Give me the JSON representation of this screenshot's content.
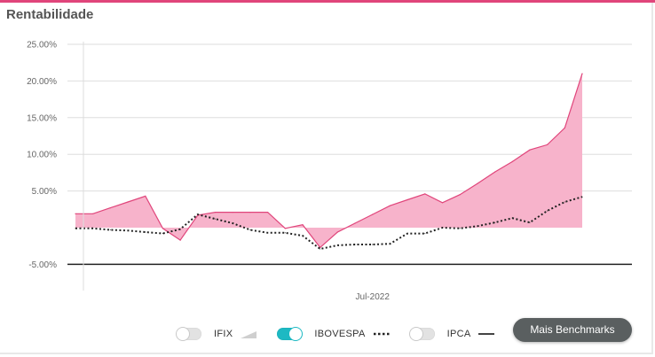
{
  "card": {
    "title": "Rentabilidade"
  },
  "colors": {
    "accent": "#e0457b",
    "fund_fill": "#f7b3cb",
    "fund_line": "#e0457b",
    "ibovespa": "#222222",
    "toggle_on": "#1db9c3",
    "button_bg": "#5a5f60"
  },
  "chart_data": {
    "type": "area",
    "title": "Rentabilidade",
    "xlabel": "",
    "ylabel": "",
    "ylim": [
      -5,
      25
    ],
    "yticks": [
      25,
      20,
      15,
      10,
      5,
      0,
      -5
    ],
    "ytick_labels": [
      "25.00%",
      "20.00%",
      "15.00%",
      "10.00%",
      "5.00%",
      "",
      "-5.00%"
    ],
    "xtick_labels": [
      {
        "label": "Jul-2022",
        "at_index": 17
      }
    ],
    "grid": true,
    "x_count": 30,
    "series": [
      {
        "style": "area",
        "values": [
          1.9,
          1.9,
          2.7,
          3.5,
          4.3,
          -0.1,
          -1.7,
          1.7,
          2.1,
          2.1,
          2.1,
          2.1,
          -0.1,
          0.4,
          -2.7,
          -0.6,
          0.6,
          1.8,
          3.0,
          3.8,
          4.6,
          3.4,
          4.5,
          6.0,
          7.6,
          9.0,
          10.6,
          11.3,
          13.6,
          21.0
        ]
      },
      {
        "name": "IBOVESPA",
        "style": "dotted",
        "values": [
          -0.1,
          -0.1,
          -0.3,
          -0.4,
          -0.6,
          -0.8,
          -0.2,
          1.8,
          1.2,
          0.6,
          -0.3,
          -0.7,
          -0.7,
          -1.1,
          -2.9,
          -2.4,
          -2.3,
          -2.3,
          -2.2,
          -0.8,
          -0.8,
          0.0,
          -0.1,
          0.2,
          0.7,
          1.3,
          0.7,
          2.3,
          3.5,
          4.2
        ]
      }
    ]
  },
  "legend": {
    "items": [
      {
        "label": "IFIX",
        "on": false,
        "symbol": "area"
      },
      {
        "label": "IBOVESPA",
        "on": true,
        "symbol": "dotted"
      },
      {
        "label": "IPCA",
        "on": false,
        "symbol": "line"
      }
    ],
    "button_label": "Mais Benchmarks"
  }
}
